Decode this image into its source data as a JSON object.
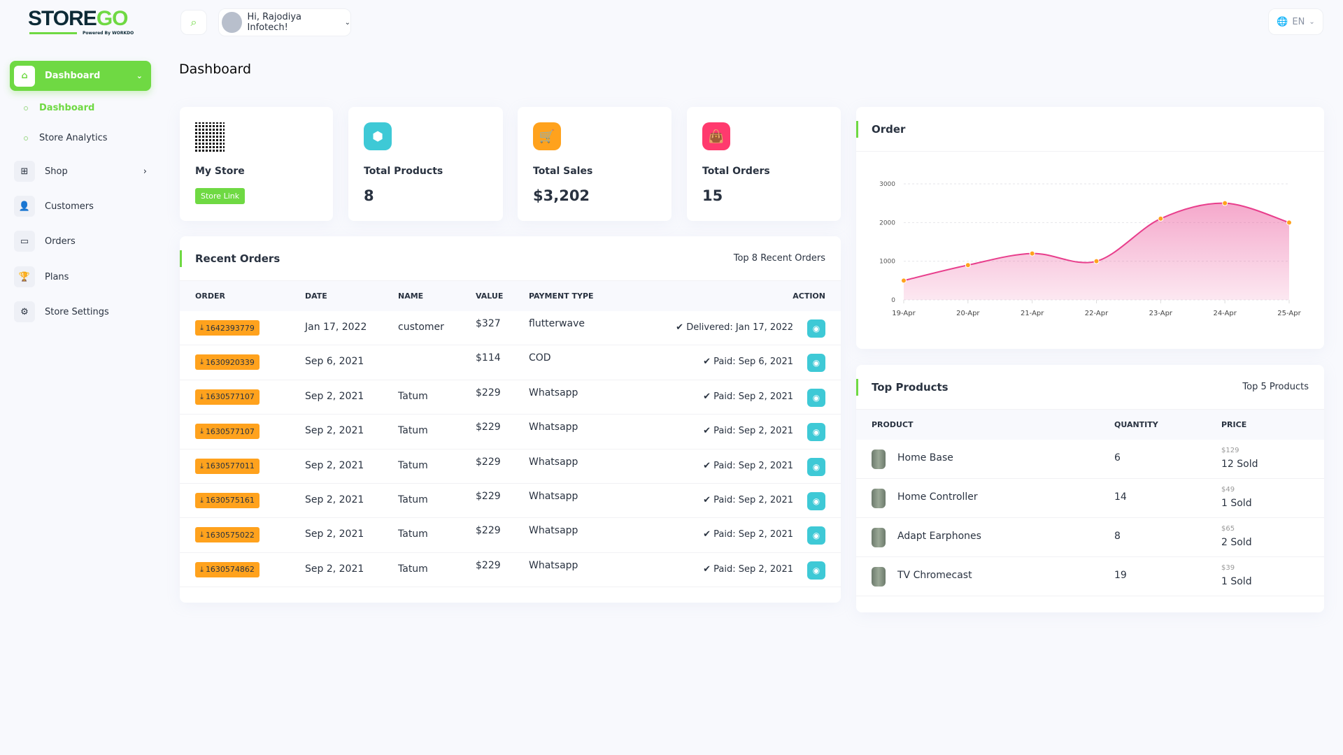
{
  "brand": {
    "logo_main": "STORE",
    "logo_accent": "GO",
    "powered": "Powered By WORKDO"
  },
  "header": {
    "greeting": "Hi, Rajodiya Infotech!",
    "language": "EN"
  },
  "sidebar": {
    "dashboard": "Dashboard",
    "sub_items": [
      "Dashboard",
      "Store Analytics"
    ],
    "items": [
      "Shop",
      "Customers",
      "Orders",
      "Plans",
      "Store Settings"
    ]
  },
  "page_title": "Dashboard",
  "stats": {
    "my_store": {
      "title": "My Store",
      "button": "Store Link"
    },
    "products": {
      "title": "Total Products",
      "value": "8"
    },
    "sales": {
      "title": "Total Sales",
      "value": "$3,202"
    },
    "orders": {
      "title": "Total Orders",
      "value": "15"
    }
  },
  "recent_orders": {
    "title": "Recent Orders",
    "subtitle": "Top 8 Recent Orders",
    "columns": [
      "ORDER",
      "DATE",
      "NAME",
      "VALUE",
      "PAYMENT TYPE",
      "ACTION"
    ],
    "rows": [
      {
        "order": "1642393779",
        "date": "Jan 17, 2022",
        "name": "customer",
        "value": "$327",
        "payment": "flutterwave",
        "status": "Delivered: Jan 17, 2022"
      },
      {
        "order": "1630920339",
        "date": "Sep 6, 2021",
        "name": "",
        "value": "$114",
        "payment": "COD",
        "status": "Paid: Sep 6, 2021"
      },
      {
        "order": "1630577107",
        "date": "Sep 2, 2021",
        "name": "Tatum",
        "value": "$229",
        "payment": "Whatsapp",
        "status": "Paid: Sep 2, 2021"
      },
      {
        "order": "1630577107",
        "date": "Sep 2, 2021",
        "name": "Tatum",
        "value": "$229",
        "payment": "Whatsapp",
        "status": "Paid: Sep 2, 2021"
      },
      {
        "order": "1630577011",
        "date": "Sep 2, 2021",
        "name": "Tatum",
        "value": "$229",
        "payment": "Whatsapp",
        "status": "Paid: Sep 2, 2021"
      },
      {
        "order": "1630575161",
        "date": "Sep 2, 2021",
        "name": "Tatum",
        "value": "$229",
        "payment": "Whatsapp",
        "status": "Paid: Sep 2, 2021"
      },
      {
        "order": "1630575022",
        "date": "Sep 2, 2021",
        "name": "Tatum",
        "value": "$229",
        "payment": "Whatsapp",
        "status": "Paid: Sep 2, 2021"
      },
      {
        "order": "1630574862",
        "date": "Sep 2, 2021",
        "name": "Tatum",
        "value": "$229",
        "payment": "Whatsapp",
        "status": "Paid: Sep 2, 2021"
      }
    ]
  },
  "order_chart": {
    "title": "Order"
  },
  "chart_data": {
    "type": "area",
    "categories": [
      "19-Apr",
      "20-Apr",
      "21-Apr",
      "22-Apr",
      "23-Apr",
      "24-Apr",
      "25-Apr"
    ],
    "values": [
      500,
      900,
      1200,
      1000,
      2100,
      2500,
      2000
    ],
    "yticks": [
      0,
      1000,
      2000,
      3000
    ],
    "ylim": [
      0,
      3000
    ],
    "grid": true,
    "line_color": "#e83e8c",
    "marker_color": "#ffa21d"
  },
  "top_products": {
    "title": "Top Products",
    "subtitle": "Top 5 Products",
    "columns": [
      "PRODUCT",
      "QUANTITY",
      "PRICE"
    ],
    "rows": [
      {
        "name": "Home Base",
        "qty": "6",
        "price": "$129",
        "sold": "12 Sold"
      },
      {
        "name": "Home Controller",
        "qty": "14",
        "price": "$49",
        "sold": "1 Sold"
      },
      {
        "name": "Adapt Earphones",
        "qty": "8",
        "price": "$65",
        "sold": "2 Sold"
      },
      {
        "name": "TV Chromecast",
        "qty": "19",
        "price": "$39",
        "sold": "1 Sold"
      }
    ]
  },
  "colors": {
    "accent": "#6fd943",
    "orange": "#ffa21d",
    "cyan": "#3ec9d6",
    "pink": "#ff3a6e"
  }
}
